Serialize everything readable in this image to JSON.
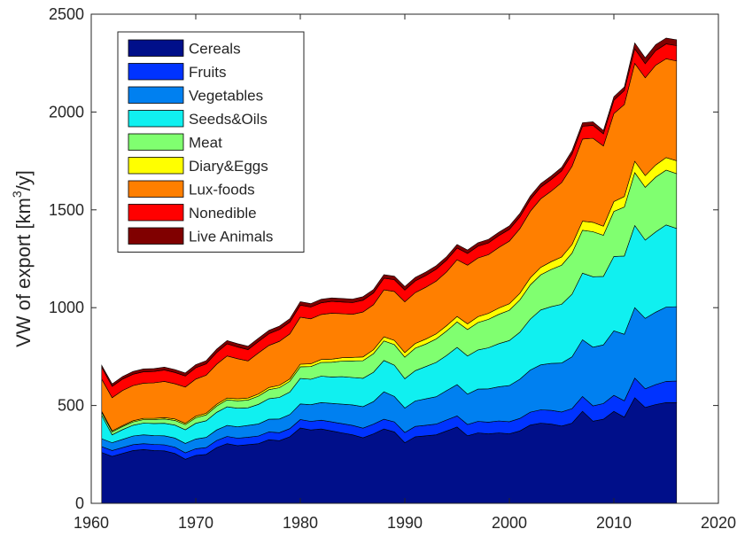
{
  "chart_data": {
    "type": "area",
    "stacked": true,
    "title": "",
    "xlabel": "",
    "ylabel": "VW of export [km",
    "ylabel_sup": "3",
    "ylabel_tail": "/y]",
    "xlim": [
      1960,
      2020
    ],
    "ylim": [
      0,
      2500
    ],
    "xticks": [
      1960,
      1970,
      1980,
      1990,
      2000,
      2010,
      2020
    ],
    "yticks": [
      0,
      500,
      1000,
      1500,
      2000,
      2500
    ],
    "grid": false,
    "legend_position": "top-left",
    "x": [
      1961,
      1962,
      1963,
      1964,
      1965,
      1966,
      1967,
      1968,
      1969,
      1970,
      1971,
      1972,
      1973,
      1974,
      1975,
      1976,
      1977,
      1978,
      1979,
      1980,
      1981,
      1982,
      1983,
      1984,
      1985,
      1986,
      1987,
      1988,
      1989,
      1990,
      1991,
      1992,
      1993,
      1994,
      1995,
      1996,
      1997,
      1998,
      1999,
      2000,
      2001,
      2002,
      2003,
      2004,
      2005,
      2006,
      2007,
      2008,
      2009,
      2010,
      2011,
      2012,
      2013,
      2014,
      2015,
      2016
    ],
    "series": [
      {
        "name": "Cereals",
        "color": "#000f8a",
        "values": [
          260,
          240,
          255,
          270,
          275,
          270,
          268,
          255,
          225,
          245,
          250,
          285,
          305,
          295,
          300,
          305,
          325,
          320,
          340,
          385,
          375,
          380,
          370,
          360,
          350,
          335,
          355,
          380,
          365,
          310,
          340,
          345,
          350,
          370,
          390,
          345,
          360,
          355,
          360,
          355,
          370,
          400,
          410,
          405,
          395,
          410,
          470,
          420,
          430,
          470,
          440,
          540,
          490,
          505,
          515,
          515
        ]
      },
      {
        "name": "Fruits",
        "color": "#0033ff",
        "values": [
          30,
          30,
          30,
          30,
          30,
          31,
          31,
          32,
          33,
          34,
          35,
          36,
          37,
          38,
          38,
          39,
          40,
          41,
          42,
          43,
          44,
          45,
          46,
          47,
          48,
          49,
          50,
          50,
          51,
          52,
          53,
          54,
          55,
          56,
          57,
          58,
          59,
          60,
          61,
          62,
          64,
          66,
          68,
          70,
          72,
          74,
          76,
          78,
          80,
          82,
          84,
          100,
          95,
          102,
          108,
          110
        ]
      },
      {
        "name": "Vegetables",
        "color": "#0080f0",
        "values": [
          40,
          40,
          42,
          44,
          45,
          45,
          46,
          47,
          48,
          50,
          52,
          54,
          56,
          58,
          60,
          62,
          65,
          70,
          72,
          80,
          85,
          90,
          95,
          100,
          105,
          110,
          115,
          140,
          130,
          125,
          130,
          135,
          140,
          150,
          160,
          155,
          165,
          170,
          175,
          185,
          200,
          215,
          230,
          240,
          250,
          265,
          290,
          300,
          300,
          330,
          340,
          360,
          360,
          370,
          380,
          380
        ]
      },
      {
        "name": "Seeds&Oils",
        "color": "#10f0f0",
        "values": [
          120,
          40,
          50,
          55,
          60,
          62,
          64,
          66,
          70,
          80,
          85,
          90,
          95,
          95,
          90,
          100,
          105,
          110,
          115,
          130,
          130,
          135,
          135,
          140,
          140,
          145,
          150,
          160,
          160,
          150,
          155,
          165,
          175,
          180,
          190,
          195,
          200,
          210,
          220,
          230,
          240,
          260,
          280,
          290,
          300,
          320,
          340,
          360,
          350,
          380,
          400,
          420,
          400,
          410,
          420,
          400
        ]
      },
      {
        "name": "Meat",
        "color": "#80ff70",
        "values": [
          15,
          15,
          15,
          17,
          18,
          20,
          22,
          24,
          26,
          28,
          30,
          32,
          36,
          38,
          40,
          42,
          46,
          50,
          55,
          60,
          65,
          70,
          75,
          80,
          85,
          90,
          95,
          100,
          105,
          110,
          115,
          115,
          120,
          125,
          130,
          135,
          140,
          145,
          150,
          155,
          165,
          175,
          180,
          190,
          200,
          210,
          220,
          230,
          210,
          230,
          250,
          270,
          270,
          280,
          280,
          280
        ]
      },
      {
        "name": "Diary&Eggs",
        "color": "#ffff00",
        "values": [
          5,
          5,
          5,
          6,
          6,
          6,
          7,
          7,
          7,
          8,
          8,
          9,
          9,
          10,
          10,
          11,
          11,
          12,
          12,
          13,
          14,
          15,
          16,
          17,
          18,
          19,
          20,
          21,
          22,
          23,
          24,
          25,
          26,
          27,
          28,
          29,
          30,
          31,
          32,
          33,
          34,
          36,
          38,
          40,
          42,
          44,
          46,
          48,
          46,
          50,
          54,
          58,
          60,
          62,
          64,
          66
        ]
      },
      {
        "name": "Lux-foods",
        "color": "#ff7f00",
        "values": [
          165,
          170,
          180,
          180,
          180,
          182,
          185,
          180,
          185,
          190,
          195,
          205,
          215,
          205,
          190,
          210,
          215,
          225,
          230,
          240,
          230,
          230,
          235,
          225,
          220,
          230,
          230,
          240,
          250,
          260,
          260,
          265,
          270,
          275,
          290,
          300,
          300,
          300,
          310,
          320,
          330,
          340,
          350,
          360,
          380,
          400,
          420,
          430,
          410,
          450,
          470,
          500,
          500,
          510,
          505,
          510
        ]
      },
      {
        "name": "Nonedible",
        "color": "#ff0000",
        "values": [
          60,
          58,
          58,
          58,
          58,
          58,
          58,
          58,
          57,
          58,
          58,
          60,
          62,
          60,
          58,
          58,
          60,
          60,
          60,
          62,
          60,
          60,
          60,
          60,
          60,
          60,
          60,
          60,
          60,
          60,
          60,
          60,
          60,
          60,
          60,
          60,
          60,
          60,
          60,
          60,
          60,
          60,
          60,
          60,
          60,
          62,
          65,
          66,
          62,
          68,
          72,
          75,
          72,
          75,
          76,
          78
        ]
      },
      {
        "name": "Live Animals",
        "color": "#800000",
        "values": [
          10,
          12,
          13,
          14,
          15,
          15,
          15,
          15,
          15,
          16,
          16,
          17,
          17,
          17,
          17,
          17,
          17,
          18,
          18,
          18,
          18,
          18,
          18,
          18,
          18,
          18,
          18,
          18,
          18,
          18,
          18,
          18,
          18,
          18,
          18,
          18,
          18,
          18,
          18,
          18,
          18,
          18,
          18,
          18,
          18,
          18,
          18,
          18,
          18,
          18,
          18,
          30,
          30,
          30,
          30,
          30
        ]
      }
    ]
  }
}
